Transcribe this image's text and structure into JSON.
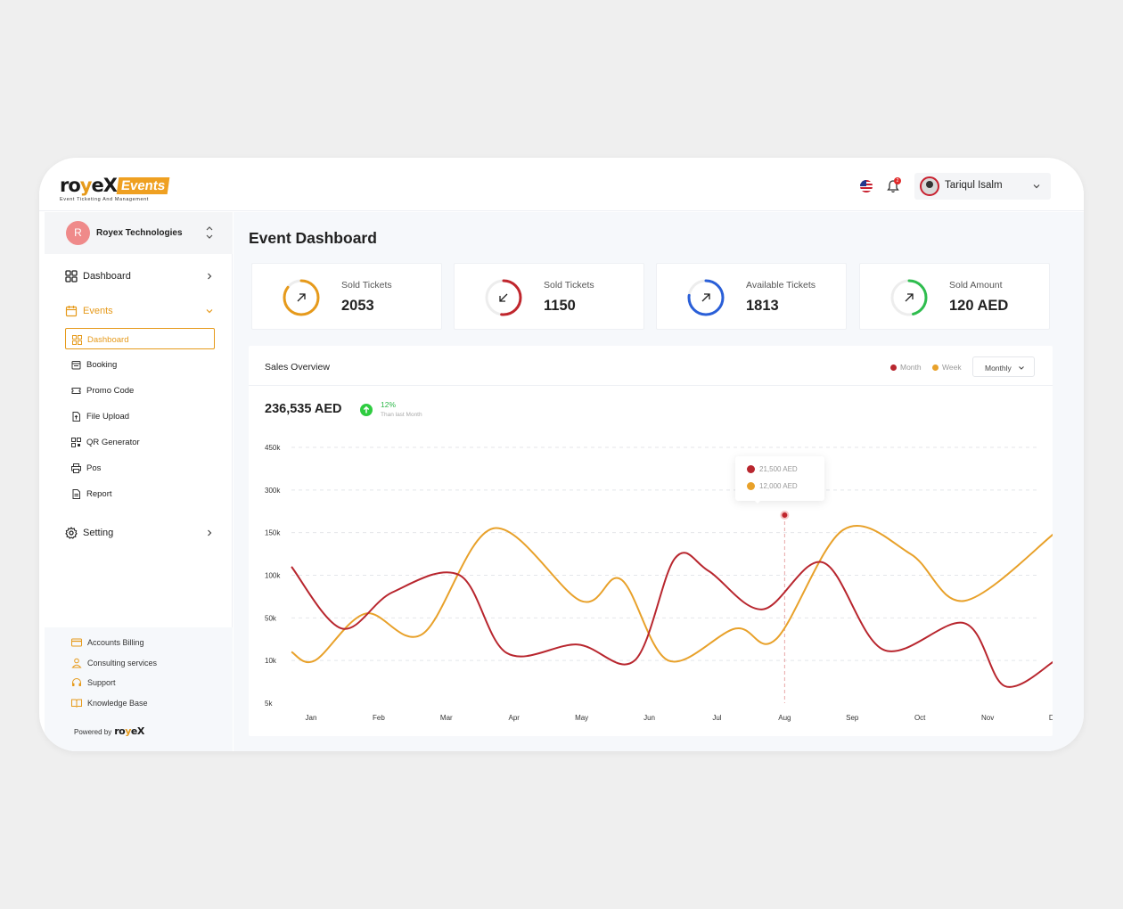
{
  "brand": {
    "name_part1": "ro",
    "name_y": "y",
    "name_part2": "eX",
    "badge": "Events",
    "tagline": "Event Ticketing And Management"
  },
  "header": {
    "user_name": "Tariqul Isalm",
    "notification_count": "2"
  },
  "sidebar": {
    "org": {
      "initial": "R",
      "name": "Royex Technologies"
    },
    "dashboard_label": "Dashboard",
    "events_label": "Events",
    "event_items": [
      {
        "label": "Dashboard"
      },
      {
        "label": "Booking"
      },
      {
        "label": "Promo Code"
      },
      {
        "label": "File Upload"
      },
      {
        "label": "QR Generator"
      },
      {
        "label": "Pos"
      },
      {
        "label": "Report"
      }
    ],
    "setting_label": "Setting",
    "bottom_items": [
      {
        "label": "Accounts Billing"
      },
      {
        "label": "Consulting services"
      },
      {
        "label": "Support"
      },
      {
        "label": "Knowledge Base"
      }
    ],
    "powered_by": "Powered by"
  },
  "main": {
    "title": "Event Dashboard",
    "stats": [
      {
        "label": "Sold Tickets",
        "value": "2053",
        "color": "#e69a1b"
      },
      {
        "label": "Sold Tickets",
        "value": "1150",
        "color": "#c0262d"
      },
      {
        "label": "Available Tickets",
        "value": "1813",
        "color": "#2a5fd8"
      },
      {
        "label": "Sold Amount",
        "value": "120 AED",
        "color": "#2ebd4e"
      }
    ],
    "sales": {
      "title": "Sales Overview",
      "legend": {
        "month": "Month",
        "week": "Week"
      },
      "period": "Monthly",
      "total": "236,535 AED",
      "change_pct": "12%",
      "change_sub": "Than last Month",
      "tooltip": {
        "month_value": "21,500 AED",
        "week_value": "12,000 AED"
      }
    }
  },
  "chart_data": {
    "type": "line",
    "categories": [
      "Jan",
      "Feb",
      "Mar",
      "Apr",
      "May",
      "Jun",
      "Jul",
      "Aug",
      "Sep",
      "Oct",
      "Nov",
      "Dec"
    ],
    "y_ticks": [
      "450k",
      "300k",
      "150k",
      "100k",
      "50k",
      "10k",
      "5k"
    ],
    "series": [
      {
        "name": "Month",
        "color": "#b8262e",
        "values": [
          [
            0,
            110
          ],
          [
            0.75,
            40
          ],
          [
            1.5,
            80
          ],
          [
            2.5,
            100
          ],
          [
            3.2,
            17
          ],
          [
            4.25,
            25
          ],
          [
            5.1,
            10
          ],
          [
            5.7,
            120
          ],
          [
            6.2,
            105
          ],
          [
            7.0,
            60
          ],
          [
            7.9,
            115
          ],
          [
            8.8,
            20
          ],
          [
            10.0,
            45
          ],
          [
            10.6,
            7
          ],
          [
            11.35,
            10
          ]
        ]
      },
      {
        "name": "Week",
        "color": "#e8a12a",
        "values": [
          [
            0,
            18
          ],
          [
            0.35,
            10
          ],
          [
            1.1,
            55
          ],
          [
            1.95,
            35
          ],
          [
            3.0,
            165
          ],
          [
            4.3,
            70
          ],
          [
            4.9,
            95
          ],
          [
            5.6,
            10
          ],
          [
            6.6,
            40
          ],
          [
            7.2,
            30
          ],
          [
            8.2,
            160
          ],
          [
            9.2,
            125
          ],
          [
            10.0,
            70
          ],
          [
            11.35,
            150
          ]
        ]
      }
    ],
    "highlight": {
      "category": "Aug",
      "month": "21,500 AED",
      "week": "12,000 AED"
    }
  },
  "colors": {
    "accent": "#e69a1b",
    "month": "#b8262e",
    "week": "#e8a12a",
    "up": "#2ecc40"
  }
}
